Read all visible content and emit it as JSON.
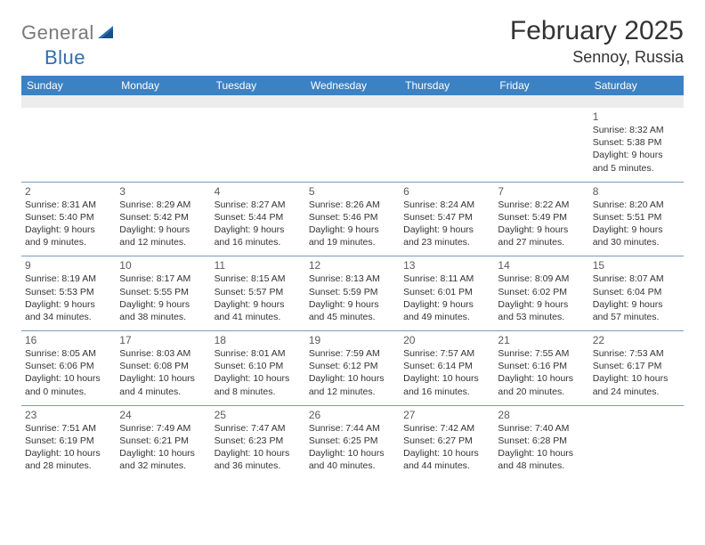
{
  "brand": {
    "part1": "General",
    "part2": "Blue"
  },
  "title": "February 2025",
  "location": "Sennoy, Russia",
  "colors": {
    "header_bg": "#3b82c4",
    "header_text": "#ffffff",
    "spacer_bg": "#ececec",
    "border": "#7a9bb8",
    "logo_gray": "#7a7a7a",
    "logo_blue": "#2f6fb0",
    "text": "#333333",
    "daynum": "#5a5a5a"
  },
  "day_headers": [
    "Sunday",
    "Monday",
    "Tuesday",
    "Wednesday",
    "Thursday",
    "Friday",
    "Saturday"
  ],
  "weeks": [
    [
      null,
      null,
      null,
      null,
      null,
      null,
      {
        "n": "1",
        "sr": "Sunrise: 8:32 AM",
        "ss": "Sunset: 5:38 PM",
        "dl": "Daylight: 9 hours and 5 minutes."
      }
    ],
    [
      {
        "n": "2",
        "sr": "Sunrise: 8:31 AM",
        "ss": "Sunset: 5:40 PM",
        "dl": "Daylight: 9 hours and 9 minutes."
      },
      {
        "n": "3",
        "sr": "Sunrise: 8:29 AM",
        "ss": "Sunset: 5:42 PM",
        "dl": "Daylight: 9 hours and 12 minutes."
      },
      {
        "n": "4",
        "sr": "Sunrise: 8:27 AM",
        "ss": "Sunset: 5:44 PM",
        "dl": "Daylight: 9 hours and 16 minutes."
      },
      {
        "n": "5",
        "sr": "Sunrise: 8:26 AM",
        "ss": "Sunset: 5:46 PM",
        "dl": "Daylight: 9 hours and 19 minutes."
      },
      {
        "n": "6",
        "sr": "Sunrise: 8:24 AM",
        "ss": "Sunset: 5:47 PM",
        "dl": "Daylight: 9 hours and 23 minutes."
      },
      {
        "n": "7",
        "sr": "Sunrise: 8:22 AM",
        "ss": "Sunset: 5:49 PM",
        "dl": "Daylight: 9 hours and 27 minutes."
      },
      {
        "n": "8",
        "sr": "Sunrise: 8:20 AM",
        "ss": "Sunset: 5:51 PM",
        "dl": "Daylight: 9 hours and 30 minutes."
      }
    ],
    [
      {
        "n": "9",
        "sr": "Sunrise: 8:19 AM",
        "ss": "Sunset: 5:53 PM",
        "dl": "Daylight: 9 hours and 34 minutes."
      },
      {
        "n": "10",
        "sr": "Sunrise: 8:17 AM",
        "ss": "Sunset: 5:55 PM",
        "dl": "Daylight: 9 hours and 38 minutes."
      },
      {
        "n": "11",
        "sr": "Sunrise: 8:15 AM",
        "ss": "Sunset: 5:57 PM",
        "dl": "Daylight: 9 hours and 41 minutes."
      },
      {
        "n": "12",
        "sr": "Sunrise: 8:13 AM",
        "ss": "Sunset: 5:59 PM",
        "dl": "Daylight: 9 hours and 45 minutes."
      },
      {
        "n": "13",
        "sr": "Sunrise: 8:11 AM",
        "ss": "Sunset: 6:01 PM",
        "dl": "Daylight: 9 hours and 49 minutes."
      },
      {
        "n": "14",
        "sr": "Sunrise: 8:09 AM",
        "ss": "Sunset: 6:02 PM",
        "dl": "Daylight: 9 hours and 53 minutes."
      },
      {
        "n": "15",
        "sr": "Sunrise: 8:07 AM",
        "ss": "Sunset: 6:04 PM",
        "dl": "Daylight: 9 hours and 57 minutes."
      }
    ],
    [
      {
        "n": "16",
        "sr": "Sunrise: 8:05 AM",
        "ss": "Sunset: 6:06 PM",
        "dl": "Daylight: 10 hours and 0 minutes."
      },
      {
        "n": "17",
        "sr": "Sunrise: 8:03 AM",
        "ss": "Sunset: 6:08 PM",
        "dl": "Daylight: 10 hours and 4 minutes."
      },
      {
        "n": "18",
        "sr": "Sunrise: 8:01 AM",
        "ss": "Sunset: 6:10 PM",
        "dl": "Daylight: 10 hours and 8 minutes."
      },
      {
        "n": "19",
        "sr": "Sunrise: 7:59 AM",
        "ss": "Sunset: 6:12 PM",
        "dl": "Daylight: 10 hours and 12 minutes."
      },
      {
        "n": "20",
        "sr": "Sunrise: 7:57 AM",
        "ss": "Sunset: 6:14 PM",
        "dl": "Daylight: 10 hours and 16 minutes."
      },
      {
        "n": "21",
        "sr": "Sunrise: 7:55 AM",
        "ss": "Sunset: 6:16 PM",
        "dl": "Daylight: 10 hours and 20 minutes."
      },
      {
        "n": "22",
        "sr": "Sunrise: 7:53 AM",
        "ss": "Sunset: 6:17 PM",
        "dl": "Daylight: 10 hours and 24 minutes."
      }
    ],
    [
      {
        "n": "23",
        "sr": "Sunrise: 7:51 AM",
        "ss": "Sunset: 6:19 PM",
        "dl": "Daylight: 10 hours and 28 minutes."
      },
      {
        "n": "24",
        "sr": "Sunrise: 7:49 AM",
        "ss": "Sunset: 6:21 PM",
        "dl": "Daylight: 10 hours and 32 minutes."
      },
      {
        "n": "25",
        "sr": "Sunrise: 7:47 AM",
        "ss": "Sunset: 6:23 PM",
        "dl": "Daylight: 10 hours and 36 minutes."
      },
      {
        "n": "26",
        "sr": "Sunrise: 7:44 AM",
        "ss": "Sunset: 6:25 PM",
        "dl": "Daylight: 10 hours and 40 minutes."
      },
      {
        "n": "27",
        "sr": "Sunrise: 7:42 AM",
        "ss": "Sunset: 6:27 PM",
        "dl": "Daylight: 10 hours and 44 minutes."
      },
      {
        "n": "28",
        "sr": "Sunrise: 7:40 AM",
        "ss": "Sunset: 6:28 PM",
        "dl": "Daylight: 10 hours and 48 minutes."
      },
      null
    ]
  ]
}
